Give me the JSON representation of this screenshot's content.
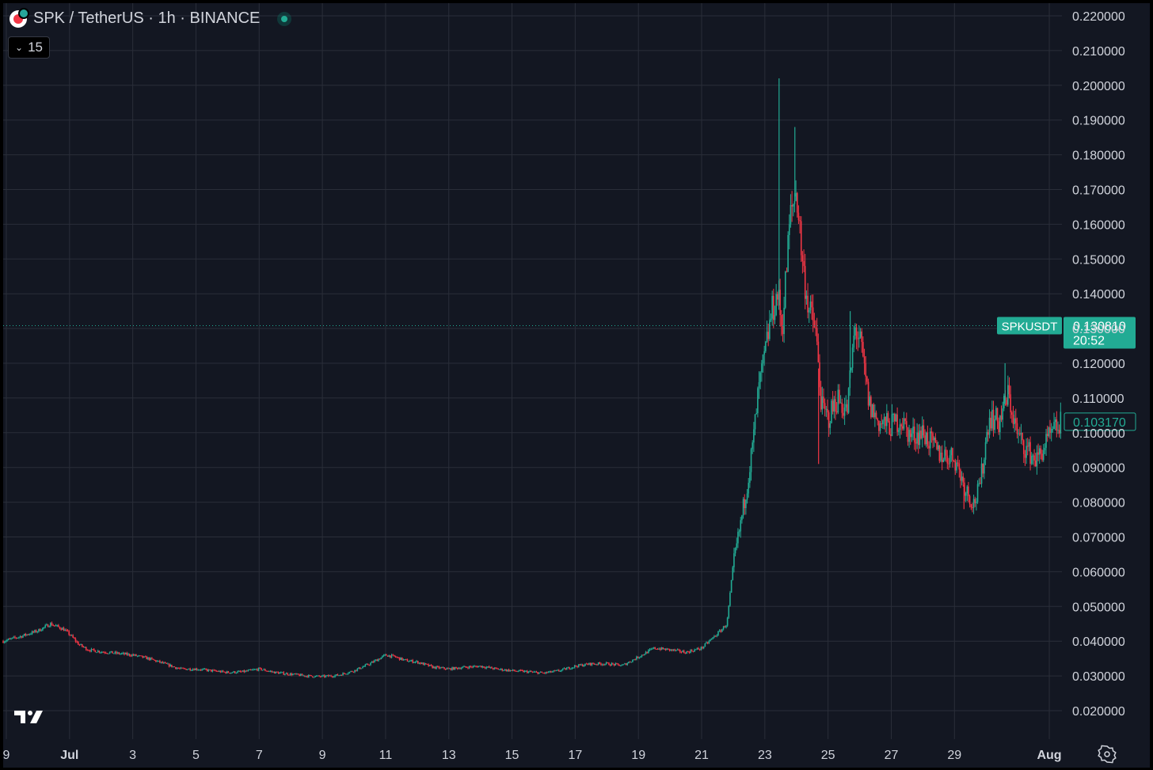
{
  "header": {
    "symbol_title": "SPK / TetherUS · 1h · BINANCE",
    "interval_label": "15"
  },
  "colors": {
    "background": "#131722",
    "grid": "#2a2e39",
    "up": "#22ab94",
    "down": "#f23645",
    "axis_text": "#d1d4dc",
    "price_label_bg": "#22ab94"
  },
  "icons": {
    "symbol_logo": "spark-logo",
    "market_status": "market-open-dot",
    "interval_toggle": "chevron-down-icon",
    "brand": "tradingview-logo",
    "settings": "gear-icon"
  },
  "chart_data": {
    "type": "line",
    "title": "SPK / TetherUS · 1h · BINANCE",
    "xlabel": "",
    "ylabel": "",
    "ylim": [
      0.01,
      0.22
    ],
    "y_ticks": [
      "0.220000",
      "0.210000",
      "0.200000",
      "0.190000",
      "0.180000",
      "0.170000",
      "0.160000",
      "0.150000",
      "0.140000",
      "0.130000",
      "0.120000",
      "0.110000",
      "0.100000",
      "0.090000",
      "0.080000",
      "0.070000",
      "0.060000",
      "0.050000",
      "0.040000",
      "0.030000",
      "0.020000"
    ],
    "x_ticks": [
      "9",
      "Jul",
      "3",
      "5",
      "7",
      "9",
      "11",
      "13",
      "15",
      "17",
      "19",
      "21",
      "23",
      "25",
      "27",
      "29",
      "Aug"
    ],
    "x_tick_days": [
      -1,
      1,
      3,
      5,
      7,
      9,
      11,
      13,
      15,
      17,
      19,
      21,
      23,
      25,
      27,
      29,
      32
    ],
    "x_range_days": [
      -1.1,
      32.4
    ],
    "grid": true,
    "series": [
      {
        "x": [
          -1.1,
          -0.5,
          0,
          0.4,
          0.8,
          1,
          1.3,
          1.6,
          2,
          2.5,
          3,
          3.5,
          4,
          4.5,
          5,
          5.5,
          6,
          6.5,
          7,
          7.5,
          8,
          8.5,
          9,
          9.5,
          10,
          10.5,
          11,
          11.3,
          11.6,
          12,
          12.5,
          13,
          13.5,
          14,
          14.5,
          15,
          15.5,
          16,
          16.5,
          17,
          17.5,
          18,
          18.5,
          19,
          19.5,
          20,
          20.5,
          21,
          21.3,
          21.6,
          21.8,
          22,
          22.2,
          22.4,
          22.6,
          22.8,
          23,
          23.2,
          23.4,
          23.55,
          23.8,
          24,
          24.2,
          24.4,
          24.6,
          24.8,
          25,
          25.3,
          25.6,
          25.85,
          26,
          26.3,
          26.6,
          27,
          27.3,
          27.6,
          28,
          28.5,
          29,
          29.3,
          29.6,
          29.8,
          30.1,
          30.4,
          30.7,
          31,
          31.3,
          31.6,
          31.9,
          32.2,
          32.4
        ],
        "close": [
          0.04,
          0.0415,
          0.043,
          0.045,
          0.0435,
          0.042,
          0.039,
          0.0375,
          0.037,
          0.0365,
          0.036,
          0.035,
          0.0335,
          0.032,
          0.032,
          0.0315,
          0.031,
          0.0312,
          0.032,
          0.031,
          0.0305,
          0.03,
          0.0298,
          0.0302,
          0.0315,
          0.0335,
          0.036,
          0.0355,
          0.0345,
          0.034,
          0.0325,
          0.032,
          0.0325,
          0.0328,
          0.032,
          0.0315,
          0.0312,
          0.0308,
          0.0315,
          0.0328,
          0.0335,
          0.0335,
          0.033,
          0.0355,
          0.038,
          0.0375,
          0.0368,
          0.038,
          0.0405,
          0.043,
          0.045,
          0.062,
          0.072,
          0.083,
          0.095,
          0.112,
          0.122,
          0.134,
          0.14,
          0.13,
          0.162,
          0.17,
          0.148,
          0.135,
          0.13,
          0.107,
          0.104,
          0.11,
          0.106,
          0.13,
          0.127,
          0.108,
          0.103,
          0.102,
          0.104,
          0.099,
          0.1,
          0.094,
          0.093,
          0.085,
          0.0795,
          0.084,
          0.105,
          0.103,
          0.111,
          0.099,
          0.095,
          0.092,
          0.097,
          0.101,
          0.10317
        ]
      }
    ],
    "annotations": {
      "symbol_price_label": "SPKUSDT",
      "current_price": "0.130810",
      "countdown": "20:52",
      "current_price_value": 0.13081,
      "last_price": "0.103170",
      "last_price_value": 0.10317
    }
  }
}
